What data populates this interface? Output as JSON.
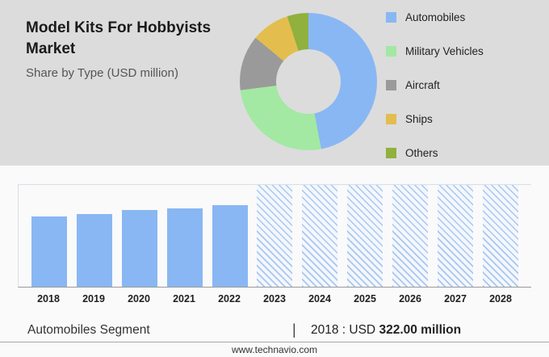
{
  "header": {
    "title": "Model Kits For Hobbyists Market",
    "subtitle": "Share by Type (USD million)"
  },
  "chart_data": [
    {
      "type": "pie",
      "donut": true,
      "title": "Share by Type (USD million)",
      "legend_position": "right",
      "segments": [
        {
          "label": "Automobiles",
          "value": 47,
          "color": "#89B7F3"
        },
        {
          "label": "Military Vehicles",
          "value": 26,
          "color": "#A3E8A3"
        },
        {
          "label": "Aircraft",
          "value": 13,
          "color": "#9A9A9A"
        },
        {
          "label": "Ships",
          "value": 9,
          "color": "#E3BE4E"
        },
        {
          "label": "Others",
          "value": 5,
          "color": "#90B13E"
        }
      ]
    },
    {
      "type": "bar",
      "categories": [
        "2018",
        "2019",
        "2020",
        "2021",
        "2022",
        "2023",
        "2024",
        "2025",
        "2026",
        "2027",
        "2028"
      ],
      "values": [
        322,
        331,
        349,
        357,
        371,
        null,
        null,
        null,
        null,
        null,
        null
      ],
      "forecast_years": [
        "2023",
        "2024",
        "2025",
        "2026",
        "2027",
        "2028"
      ],
      "forecast_style": "hatched-full-height",
      "ylim": [
        0,
        465
      ],
      "bar_color": "#89B7F3",
      "grid": "top-line-only",
      "xlabel": "",
      "ylabel": ""
    }
  ],
  "footer": {
    "segment_label": "Automobiles Segment",
    "divider": "|",
    "stat_prefix": "2018 : USD",
    "stat_value": "322.00 million"
  },
  "website": "www.technavio.com"
}
